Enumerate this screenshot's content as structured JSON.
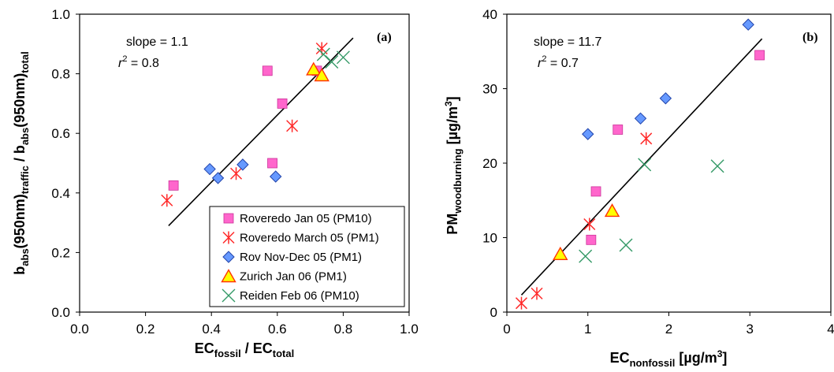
{
  "chart_data": [
    {
      "type": "scatter",
      "panel_label": "(a)",
      "xlabel": {
        "main": "EC",
        "sub1": "fossil",
        "mid": " / EC",
        "sub2": "total"
      },
      "ylabel": {
        "p1": "b",
        "s1": "abs",
        "p2": "(950nm)",
        "s2": "traffic",
        "p3": " / b",
        "s3": "abs",
        "p4": "(950nm)",
        "s4": "total"
      },
      "xlim": [
        0.0,
        1.0
      ],
      "ylim": [
        0.0,
        1.0
      ],
      "xticks": [
        "0.0",
        "0.2",
        "0.4",
        "0.6",
        "0.8",
        "1.0"
      ],
      "yticks": [
        "0.0",
        "0.2",
        "0.4",
        "0.6",
        "0.8",
        "1.0"
      ],
      "slope_text": "slope = 1.1",
      "r2_text": {
        "r": "r",
        "exp": "2",
        "rest": " = 0.8"
      },
      "fit_line": {
        "x": [
          0.27,
          0.83
        ],
        "y": [
          0.29,
          0.92
        ]
      },
      "legend_position": "bottom-right",
      "series": [
        {
          "name": "Roveredo Jan 05 (PM10)",
          "marker": "square",
          "color": "#ff66cc",
          "edge": "#cc3399",
          "x": [
            0.285,
            0.57,
            0.585,
            0.615,
            0.72
          ],
          "y": [
            0.425,
            0.81,
            0.5,
            0.7,
            0.81
          ]
        },
        {
          "name": "Roveredo March 05 (PM1)",
          "marker": "asterisk",
          "color": "#ff2a2a",
          "edge": "#ff2a2a",
          "x": [
            0.265,
            0.475,
            0.645,
            0.735
          ],
          "y": [
            0.375,
            0.465,
            0.625,
            0.885
          ]
        },
        {
          "name": "Rov Nov-Dec 05 (PM1)",
          "marker": "diamond",
          "color": "#6699ff",
          "edge": "#2244aa",
          "x": [
            0.395,
            0.42,
            0.495,
            0.595
          ],
          "y": [
            0.48,
            0.45,
            0.495,
            0.455
          ]
        },
        {
          "name": "Zurich Jan 06 (PM1)",
          "marker": "triangle",
          "color": "#ffff00",
          "edge": "#ff3300",
          "x": [
            0.71,
            0.735
          ],
          "y": [
            0.815,
            0.795
          ]
        },
        {
          "name": "Reiden Feb 06 (PM10)",
          "marker": "x",
          "color": "#339966",
          "edge": "#339966",
          "x": [
            0.74,
            0.765,
            0.8
          ],
          "y": [
            0.865,
            0.84,
            0.855
          ]
        }
      ]
    },
    {
      "type": "scatter",
      "panel_label": "(b)",
      "xlabel": {
        "main": "EC",
        "sub1": "nonfossil",
        "mid": " [µg/m",
        "sup": "3",
        "end": "]"
      },
      "ylabel": {
        "main": "PM",
        "sub": "woodburning",
        "mid": " [µg/m",
        "sup": "3",
        "end": "]"
      },
      "xlim": [
        0,
        4
      ],
      "ylim": [
        0,
        40
      ],
      "xticks": [
        "0",
        "1",
        "2",
        "3",
        "4"
      ],
      "yticks": [
        "0",
        "10",
        "20",
        "30",
        "40"
      ],
      "slope_text": "slope = 11.7",
      "r2_text": {
        "r": "r",
        "exp": "2",
        "rest": " = 0.7"
      },
      "fit_line": {
        "x": [
          0.18,
          3.15
        ],
        "y": [
          2.3,
          36.7
        ]
      },
      "series": [
        {
          "name": "Roveredo Jan 05 (PM10)",
          "marker": "square",
          "color": "#ff66cc",
          "edge": "#cc3399",
          "x": [
            1.04,
            1.1,
            1.37,
            3.12
          ],
          "y": [
            9.7,
            16.2,
            24.5,
            34.5
          ]
        },
        {
          "name": "Roveredo March 05 (PM1)",
          "marker": "asterisk",
          "color": "#ff2a2a",
          "edge": "#ff2a2a",
          "x": [
            0.18,
            0.37,
            1.02,
            1.72
          ],
          "y": [
            1.2,
            2.5,
            11.8,
            23.3
          ]
        },
        {
          "name": "Rov Nov-Dec 05 (PM1)",
          "marker": "diamond",
          "color": "#6699ff",
          "edge": "#2244aa",
          "x": [
            1.0,
            1.65,
            1.96,
            2.98
          ],
          "y": [
            23.9,
            26.0,
            28.7,
            38.6
          ]
        },
        {
          "name": "Zurich Jan 06 (PM1)",
          "marker": "triangle",
          "color": "#ffff00",
          "edge": "#ff3300",
          "x": [
            0.66,
            1.3
          ],
          "y": [
            7.8,
            13.6
          ]
        },
        {
          "name": "Reiden Feb 06 (PM10)",
          "marker": "x",
          "color": "#339966",
          "edge": "#339966",
          "x": [
            0.97,
            1.47,
            1.7,
            2.6
          ],
          "y": [
            7.5,
            9.0,
            19.8,
            19.6
          ]
        }
      ]
    }
  ]
}
